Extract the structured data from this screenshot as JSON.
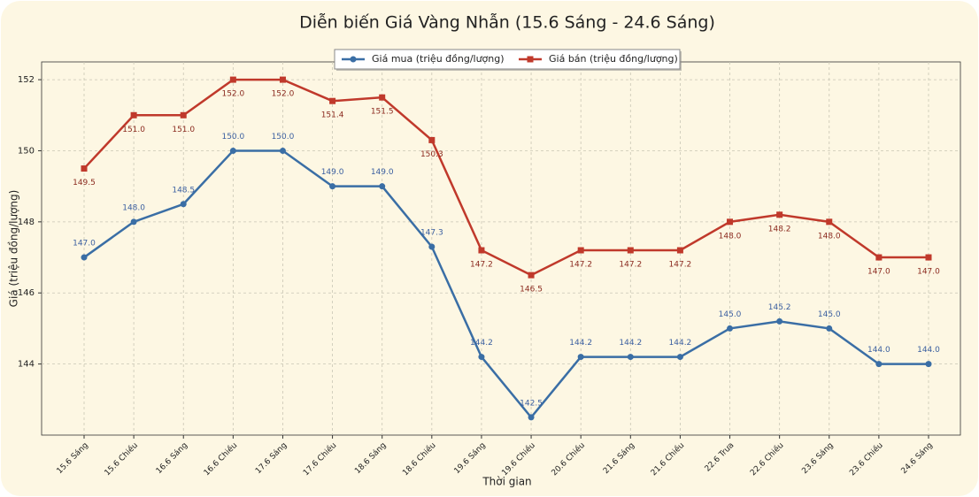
{
  "chart_data": {
    "type": "line",
    "title": "Diễn biến Giá Vàng Nhẫn (15.6 Sáng - 24.6 Sáng)",
    "x_label": "Thời gian",
    "y_label": "Giá (triệu đồng/lượng)",
    "categories": [
      "15.6 Sáng",
      "15.6 Chiều",
      "16.6 Sáng",
      "16.6 Chiều",
      "17.6 Sáng",
      "17.6 Chiều",
      "18.6 Sáng",
      "18.6 Chiều",
      "19.6 Sáng",
      "19.6 Chiều",
      "20.6 Chiều",
      "21.6 Sáng",
      "21.6 Chiều",
      "22.6 Trưa",
      "22.6 Chiều",
      "23.6 Sáng",
      "23.6 Chiều",
      "24.6 Sáng"
    ],
    "series": [
      {
        "name": "Giá mua (triệu đồng/lượng)",
        "color": "#3a6ea5",
        "label_color": "#3b5fa0",
        "marker": "circle",
        "label_position": "above",
        "values": [
          147.0,
          148.0,
          148.5,
          150.0,
          150.0,
          149.0,
          149.0,
          147.3,
          144.2,
          142.5,
          144.2,
          144.2,
          144.2,
          145.0,
          145.2,
          145.0,
          144.0,
          144.0
        ],
        "value_labels": [
          "147.0",
          "148.0",
          "148.5",
          "150.0",
          "150.0",
          "149.0",
          "149.0",
          "147.3",
          "144.2",
          "142.5",
          "144.2",
          "144.2",
          "144.2",
          "145.0",
          "145.2",
          "145.0",
          "144.0",
          "144.0"
        ]
      },
      {
        "name": "Giá bán (triệu đồng/lượng)",
        "color": "#c0392b",
        "label_color": "#8b2a1f",
        "marker": "square",
        "label_position": "below",
        "values": [
          149.5,
          151.0,
          151.0,
          152.0,
          152.0,
          151.4,
          151.5,
          150.3,
          147.2,
          146.5,
          147.2,
          147.2,
          147.2,
          148.0,
          148.2,
          148.0,
          147.0,
          147.0
        ],
        "value_labels": [
          "149.5",
          "151.0",
          "151.0",
          "152.0",
          "152.0",
          "151.4",
          "151.5",
          "150.3",
          "147.2",
          "146.5",
          "147.2",
          "147.2",
          "147.2",
          "148.0",
          "148.2",
          "148.0",
          "147.0",
          "147.0"
        ]
      }
    ],
    "ylim": [
      142.0,
      152.5
    ],
    "yticks": [
      144,
      146,
      148,
      150,
      152
    ],
    "grid": true,
    "legend": "top"
  }
}
